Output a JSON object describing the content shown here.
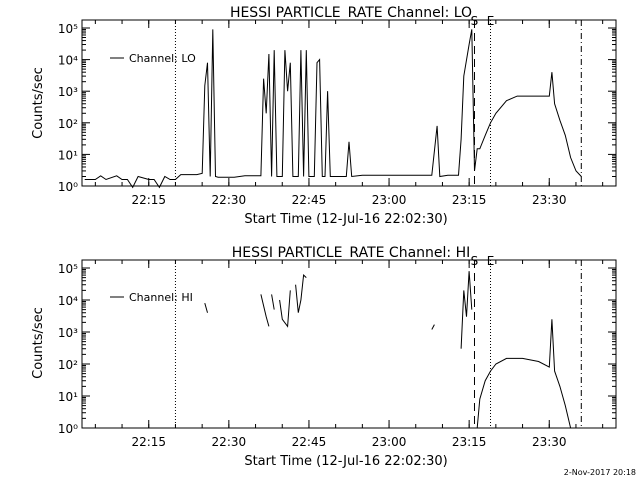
{
  "footer": {
    "timestamp": "2-Nov-2017 20:18"
  },
  "colors": {
    "line": "#000000",
    "background": "#ffffff"
  },
  "chart_data": [
    {
      "type": "line",
      "title": "HESSI PARTICLE_RATE Channel: LO",
      "xlabel": "Start Time (12-Jul-16 22:02:30)",
      "ylabel": "Counts/sec",
      "xlim": [
        "22:02:30",
        "23:42:30"
      ],
      "ylog": true,
      "ylim": [
        1,
        100000
      ],
      "ytick_labels": [
        "10⁰",
        "10¹",
        "10²",
        "10³",
        "10⁴",
        "10⁵"
      ],
      "xtick_labels": [
        "22:15",
        "22:30",
        "22:45",
        "23:00",
        "23:15",
        "23:30"
      ],
      "legend": {
        "entry": "Channel: LO",
        "placement": "top-left"
      },
      "markers": [
        {
          "time": "22:20",
          "style": "dotted",
          "label": ""
        },
        {
          "time": "23:16",
          "style": "dashed",
          "label": "S"
        },
        {
          "time": "23:19",
          "style": "dotted",
          "label": "E"
        },
        {
          "time": "23:36",
          "style": "dash-dot",
          "label": ""
        }
      ],
      "series": [
        {
          "segments": [
            [
              [
                "22:03",
                1.6
              ],
              [
                "22:05",
                1.6
              ],
              [
                "22:06",
                2.1
              ],
              [
                "22:07",
                1.6
              ],
              [
                "22:09",
                2.1
              ],
              [
                "22:10",
                1.6
              ],
              [
                "22:11",
                1.6
              ],
              [
                "22:12",
                0.9
              ],
              [
                "22:13",
                2.0
              ],
              [
                "22:15",
                1.6
              ],
              [
                "22:16",
                1.6
              ],
              [
                "22:17",
                0.9
              ],
              [
                "22:18",
                2.0
              ],
              [
                "22:19",
                1.6
              ],
              [
                "22:20",
                1.6
              ],
              [
                "22:21",
                2.3
              ],
              [
                "22:24",
                2.3
              ],
              [
                "22:25",
                2.5
              ],
              [
                "22:25.5",
                1500
              ],
              [
                "22:26",
                8000
              ],
              [
                "22:26.5",
                2
              ],
              [
                "22:27",
                90000
              ],
              [
                "22:27.5",
                2
              ],
              [
                "22:28",
                1.9
              ],
              [
                "22:31",
                1.9
              ],
              [
                "22:33",
                2.1
              ],
              [
                "22:36",
                2.1
              ],
              [
                "22:36.5",
                2500
              ],
              [
                "22:37",
                200
              ],
              [
                "22:37.5",
                15000
              ],
              [
                "22:38",
                2
              ],
              [
                "22:38.5",
                20000
              ],
              [
                "22:39",
                2
              ],
              [
                "22:40",
                2
              ],
              [
                "22:40.5",
                20000
              ],
              [
                "22:41",
                1000
              ],
              [
                "22:41.5",
                8000
              ],
              [
                "22:42",
                2
              ],
              [
                "22:43",
                2
              ],
              [
                "22:43.5",
                20000
              ],
              [
                "22:44",
                2
              ],
              [
                "22:44.5",
                20000
              ],
              [
                "22:45",
                2
              ],
              [
                "22:46",
                2
              ],
              [
                "22:46.5",
                8000
              ],
              [
                "22:47",
                10000
              ],
              [
                "22:47.5",
                2
              ],
              [
                "22:48",
                2
              ],
              [
                "22:48.5",
                1000
              ],
              [
                "22:49",
                2
              ],
              [
                "22:52",
                2
              ],
              [
                "22:52.5",
                25
              ],
              [
                "22:53",
                2
              ],
              [
                "22:55",
                2.2
              ],
              [
                "23:05",
                2.2
              ],
              [
                "23:08",
                2.2
              ],
              [
                "23:09",
                80
              ],
              [
                "23:09.5",
                2
              ],
              [
                "23:11",
                2.2
              ],
              [
                "23:13",
                2.2
              ],
              [
                "23:13.5",
                30
              ],
              [
                "23:14",
                3000
              ],
              [
                "23:15",
                30000
              ],
              [
                "23:15.5",
                90000
              ],
              [
                "23:16",
                3
              ],
              [
                "23:16.5",
                15
              ],
              [
                "23:17",
                15
              ],
              [
                "23:18",
                40
              ],
              [
                "23:19",
                100
              ],
              [
                "23:20",
                200
              ],
              [
                "23:22",
                500
              ],
              [
                "23:24",
                700
              ],
              [
                "23:30",
                700
              ],
              [
                "23:30.5",
                4000
              ],
              [
                "23:31",
                400
              ],
              [
                "23:32",
                120
              ],
              [
                "23:33",
                40
              ],
              [
                "23:34",
                8
              ],
              [
                "23:35",
                3
              ],
              [
                "23:36",
                2
              ]
            ]
          ]
        }
      ]
    },
    {
      "type": "line",
      "title": "HESSI PARTICLE_RATE Channel: HI",
      "xlabel": "Start Time (12-Jul-16 22:02:30)",
      "ylabel": "Counts/sec",
      "xlim": [
        "22:02:30",
        "23:42:30"
      ],
      "ylog": true,
      "ylim": [
        1,
        100000
      ],
      "ytick_labels": [
        "10⁰",
        "10¹",
        "10²",
        "10³",
        "10⁴",
        "10⁵"
      ],
      "xtick_labels": [
        "22:15",
        "22:30",
        "22:45",
        "23:00",
        "23:15",
        "23:30"
      ],
      "legend": {
        "entry": "Channel: HI",
        "placement": "top-left"
      },
      "markers": [
        {
          "time": "22:20",
          "style": "dotted",
          "label": ""
        },
        {
          "time": "23:16",
          "style": "dashed",
          "label": "S"
        },
        {
          "time": "23:19",
          "style": "dotted",
          "label": "E"
        },
        {
          "time": "23:36",
          "style": "dash-dot",
          "label": ""
        }
      ],
      "series": [
        {
          "segments": [
            [
              [
                "22:25.5",
                8000
              ],
              [
                "22:26",
                4000
              ]
            ],
            [
              [
                "22:36",
                15000
              ],
              [
                "22:37",
                3000
              ],
              [
                "22:37.5",
                1500
              ]
            ],
            [
              [
                "22:38",
                15000
              ],
              [
                "22:38.5",
                5000
              ]
            ],
            [
              [
                "22:39.5",
                10000
              ],
              [
                "22:40",
                2500
              ],
              [
                "22:41",
                1500
              ],
              [
                "22:41.5",
                20000
              ]
            ],
            [
              [
                "22:42.5",
                30000
              ],
              [
                "22:43",
                4000
              ],
              [
                "22:43.5",
                10000
              ],
              [
                "22:44",
                60000
              ],
              [
                "22:44.5",
                50000
              ]
            ],
            [
              [
                "23:08",
                1200
              ],
              [
                "23:08.5",
                1700
              ]
            ],
            [
              [
                "23:13.5",
                300
              ],
              [
                "23:14",
                20000
              ],
              [
                "23:14.5",
                3000
              ],
              [
                "23:15",
                80000
              ],
              [
                "23:15.5",
                5000
              ]
            ],
            [
              [
                "23:16.5",
                1
              ],
              [
                "23:17",
                8
              ],
              [
                "23:18",
                30
              ],
              [
                "23:19",
                60
              ],
              [
                "23:20",
                100
              ],
              [
                "23:22",
                150
              ],
              [
                "23:25",
                150
              ],
              [
                "23:28",
                120
              ],
              [
                "23:30",
                80
              ],
              [
                "23:30.5",
                2500
              ],
              [
                "23:31",
                60
              ],
              [
                "23:32",
                20
              ],
              [
                "23:33",
                5
              ],
              [
                "23:34",
                1
              ]
            ]
          ]
        }
      ]
    }
  ]
}
